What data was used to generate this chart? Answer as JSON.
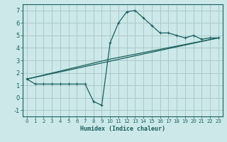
{
  "title": "",
  "xlabel": "Humidex (Indice chaleur)",
  "bg_color": "#cce8e8",
  "grid_color": "#aacaca",
  "line_color": "#1a6060",
  "spine_color": "#1a6060",
  "xlim": [
    -0.5,
    23.5
  ],
  "ylim": [
    -1.5,
    7.5
  ],
  "xticks": [
    0,
    1,
    2,
    3,
    4,
    5,
    6,
    7,
    8,
    9,
    10,
    11,
    12,
    13,
    14,
    15,
    16,
    17,
    18,
    19,
    20,
    21,
    22,
    23
  ],
  "yticks": [
    -1,
    0,
    1,
    2,
    3,
    4,
    5,
    6,
    7
  ],
  "curve1_x": [
    0,
    1,
    2,
    3,
    4,
    5,
    6,
    7,
    8,
    9,
    10,
    11,
    12,
    13,
    14,
    15,
    16,
    17,
    18,
    19,
    20,
    21,
    22,
    23
  ],
  "curve1_y": [
    1.5,
    1.1,
    1.1,
    1.1,
    1.1,
    1.1,
    1.1,
    1.1,
    -0.3,
    -0.6,
    4.4,
    6.0,
    6.9,
    7.0,
    6.4,
    5.8,
    5.2,
    5.2,
    5.0,
    4.8,
    5.0,
    4.7,
    4.8,
    4.8
  ],
  "curve2_x": [
    0,
    23
  ],
  "curve2_y": [
    1.5,
    4.8
  ],
  "curve3_x": [
    0,
    10,
    23
  ],
  "curve3_y": [
    1.5,
    3.1,
    4.8
  ],
  "xlabel_fontsize": 6.0,
  "tick_fontsize_x": 5.0,
  "tick_fontsize_y": 6.0
}
